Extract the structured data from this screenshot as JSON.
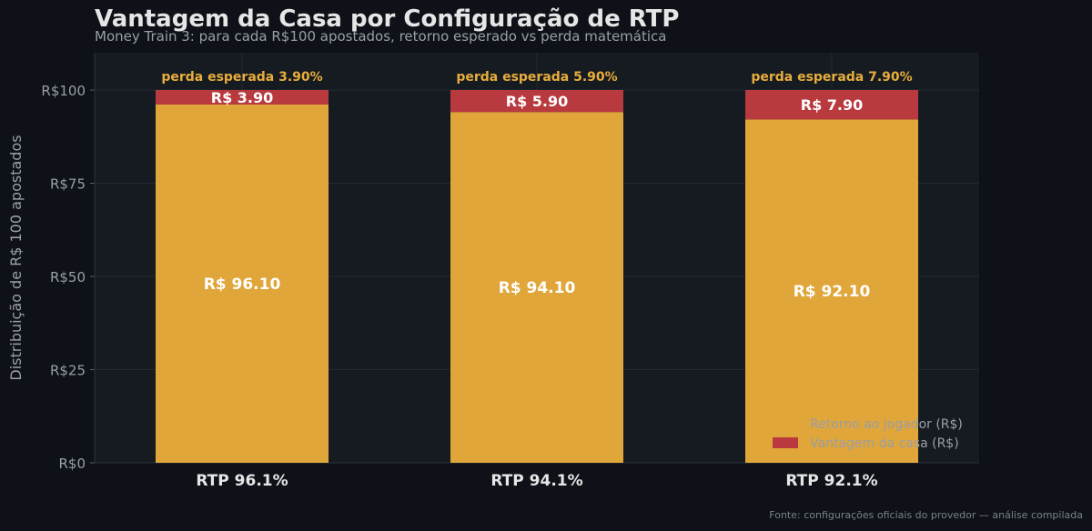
{
  "title": "Vantagem da Casa por Configuração de RTP",
  "subtitle": "Money Train 3: para cada R$100 apostados, retorno esperado vs perda matemática",
  "source": "Fonte: configurações oficiais do provedor — análise compilada",
  "colors": {
    "background": "#0e1117",
    "plot_background": "#161b22",
    "grid": "#232a33",
    "player_return": "#e0a63a",
    "house_edge": "#b83a3f",
    "annotation": "#e8ad3b",
    "text": "#e6e6e6",
    "muted": "#9a9ea6"
  },
  "chart_data": {
    "type": "bar",
    "stacked": true,
    "categories": [
      "RTP 96.1%",
      "RTP 94.1%",
      "RTP 92.1%"
    ],
    "series": [
      {
        "name": "Retorno ao jogador (R$)",
        "values": [
          96.1,
          94.1,
          92.1
        ],
        "labels": [
          "R$ 96.10",
          "R$ 94.10",
          "R$ 92.10"
        ]
      },
      {
        "name": "Vantagem da casa (R$)",
        "values": [
          3.9,
          5.9,
          7.9
        ],
        "labels": [
          "R$ 3.90",
          "R$ 5.90",
          "R$ 7.90"
        ]
      }
    ],
    "annotations": [
      "perda esperada 3.90%",
      "perda esperada 5.90%",
      "perda esperada 7.90%"
    ],
    "ylabel": "Distribuição de R$ 100 apostados",
    "yticks": [
      0,
      25,
      50,
      75,
      100
    ],
    "ytick_labels": [
      "R$0",
      "R$25",
      "R$50",
      "R$75",
      "R$100"
    ],
    "ylim": [
      0,
      110
    ],
    "grid": true,
    "legend_position": "bottom-right"
  }
}
